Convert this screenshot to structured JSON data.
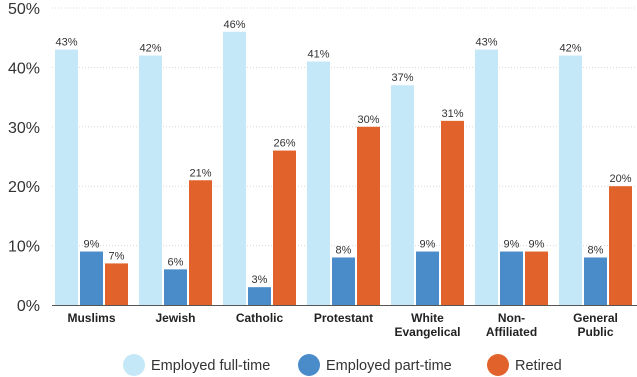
{
  "chart_data": {
    "type": "bar",
    "categories": [
      "Muslims",
      "Jewish",
      "Catholic",
      "Protestant",
      "White Evangelical",
      "Non-Affiliated",
      "General Public"
    ],
    "category_lines": [
      [
        "Muslims"
      ],
      [
        "Jewish"
      ],
      [
        "Catholic"
      ],
      [
        "Protestant"
      ],
      [
        "White",
        "Evangelical"
      ],
      [
        "Non-",
        "Affiliated"
      ],
      [
        "General",
        "Public"
      ]
    ],
    "series": [
      {
        "name": "Employed full-time",
        "color": "#c5e8f8",
        "values": [
          43,
          42,
          46,
          41,
          37,
          43,
          42
        ]
      },
      {
        "name": "Employed part-time",
        "color": "#4a8bc9",
        "values": [
          9,
          6,
          3,
          8,
          9,
          9,
          8
        ]
      },
      {
        "name": "Retired",
        "color": "#e1632b",
        "values": [
          7,
          21,
          26,
          30,
          31,
          9,
          20
        ]
      }
    ],
    "ylim": [
      0,
      50
    ],
    "yticks": [
      0,
      10,
      20,
      30,
      40,
      50
    ],
    "ytick_labels": [
      "0%",
      "10%",
      "20%",
      "30%",
      "40%",
      "50%"
    ],
    "value_suffix": "%",
    "legend_position": "bottom"
  }
}
